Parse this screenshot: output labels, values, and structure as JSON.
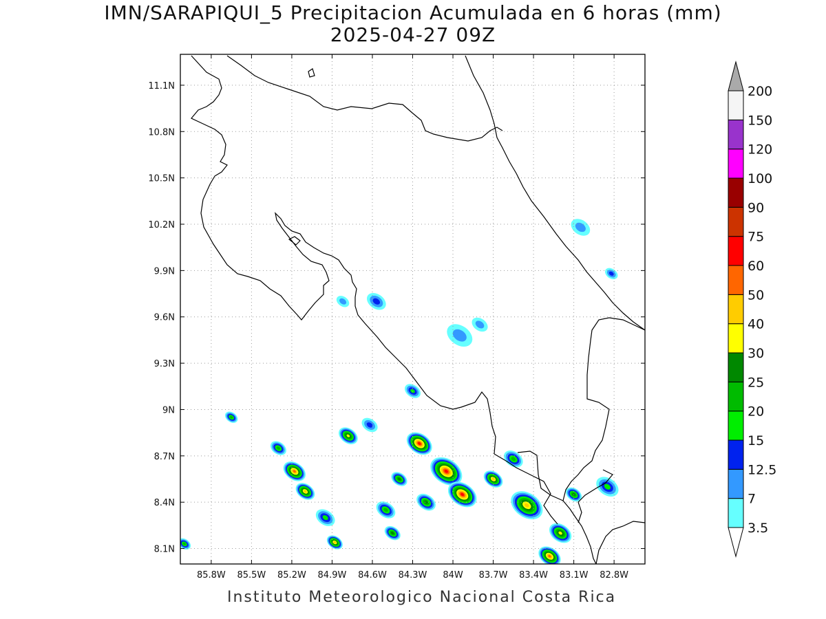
{
  "title": {
    "line1": "IMN/SARAPIQUI_5 Precipitacion Acumulada en 6 horas (mm)",
    "line2": "2025-04-27 09Z"
  },
  "credit": "Instituto Meteorologico Nacional Costa Rica",
  "map": {
    "lon_range": [
      -86.03,
      -82.57
    ],
    "lat_range": [
      8.0,
      11.3
    ],
    "lon_ticks": [
      {
        "v": -85.8,
        "label": "85.8W"
      },
      {
        "v": -85.5,
        "label": "85.5W"
      },
      {
        "v": -85.2,
        "label": "85.2W"
      },
      {
        "v": -84.9,
        "label": "84.9W"
      },
      {
        "v": -84.6,
        "label": "84.6W"
      },
      {
        "v": -84.3,
        "label": "84.3W"
      },
      {
        "v": -84.0,
        "label": "84W"
      },
      {
        "v": -83.7,
        "label": "83.7W"
      },
      {
        "v": -83.4,
        "label": "83.4W"
      },
      {
        "v": -83.1,
        "label": "83.1W"
      },
      {
        "v": -82.8,
        "label": "82.8W"
      }
    ],
    "lat_ticks": [
      {
        "v": 8.1,
        "label": "8.1N"
      },
      {
        "v": 8.4,
        "label": "8.4N"
      },
      {
        "v": 8.7,
        "label": "8.7N"
      },
      {
        "v": 9.0,
        "label": "9N"
      },
      {
        "v": 9.3,
        "label": "9.3N"
      },
      {
        "v": 9.6,
        "label": "9.6N"
      },
      {
        "v": 9.9,
        "label": "9.9N"
      },
      {
        "v": 10.2,
        "label": "10.2N"
      },
      {
        "v": 10.5,
        "label": "10.5N"
      },
      {
        "v": 10.8,
        "label": "10.8N"
      },
      {
        "v": 11.1,
        "label": "11.1N"
      }
    ],
    "grid": true
  },
  "colorbar": {
    "levels": [
      "3.5",
      "7",
      "12.5",
      "15",
      "20",
      "25",
      "30",
      "40",
      "50",
      "60",
      "75",
      "90",
      "100",
      "120",
      "150",
      "200"
    ],
    "colors": [
      "#66ffff",
      "#3399ff",
      "#0022ee",
      "#00ee00",
      "#00bb00",
      "#008800",
      "#ffff00",
      "#ffcc00",
      "#ff6600",
      "#ff0000",
      "#cc3300",
      "#990000",
      "#ff00ff",
      "#9933cc",
      "#f5f5f5"
    ],
    "over_color": "#aaaaaa",
    "under_color": "#ffffff"
  },
  "precip_cells": [
    {
      "lon": -84.05,
      "lat": 8.6,
      "r": 0.1,
      "v": 60
    },
    {
      "lon": -84.25,
      "lat": 8.78,
      "r": 0.08,
      "v": 60
    },
    {
      "lon": -83.93,
      "lat": 8.45,
      "r": 0.09,
      "v": 60
    },
    {
      "lon": -85.18,
      "lat": 8.6,
      "r": 0.07,
      "v": 50
    },
    {
      "lon": -85.1,
      "lat": 8.47,
      "r": 0.06,
      "v": 40
    },
    {
      "lon": -83.45,
      "lat": 8.38,
      "r": 0.1,
      "v": 40
    },
    {
      "lon": -83.28,
      "lat": 8.05,
      "r": 0.07,
      "v": 50
    },
    {
      "lon": -83.7,
      "lat": 8.55,
      "r": 0.06,
      "v": 40
    },
    {
      "lon": -84.88,
      "lat": 8.14,
      "r": 0.05,
      "v": 40
    },
    {
      "lon": -84.4,
      "lat": 8.55,
      "r": 0.05,
      "v": 25
    },
    {
      "lon": -84.78,
      "lat": 8.83,
      "r": 0.06,
      "v": 30
    },
    {
      "lon": -83.2,
      "lat": 8.2,
      "r": 0.07,
      "v": 30
    },
    {
      "lon": -84.2,
      "lat": 8.4,
      "r": 0.06,
      "v": 25
    },
    {
      "lon": -84.5,
      "lat": 8.35,
      "r": 0.06,
      "v": 20
    },
    {
      "lon": -85.65,
      "lat": 8.95,
      "r": 0.04,
      "v": 20
    },
    {
      "lon": -82.85,
      "lat": 8.5,
      "r": 0.07,
      "v": 15
    },
    {
      "lon": -83.55,
      "lat": 8.68,
      "r": 0.06,
      "v": 20
    },
    {
      "lon": -84.3,
      "lat": 9.12,
      "r": 0.05,
      "v": 15
    },
    {
      "lon": -84.57,
      "lat": 9.7,
      "r": 0.06,
      "v": 12.5
    },
    {
      "lon": -83.95,
      "lat": 9.48,
      "r": 0.08,
      "v": 7
    },
    {
      "lon": -83.05,
      "lat": 10.18,
      "r": 0.06,
      "v": 7
    },
    {
      "lon": -82.82,
      "lat": 9.88,
      "r": 0.04,
      "v": 12.5
    },
    {
      "lon": -84.82,
      "lat": 9.7,
      "r": 0.04,
      "v": 7
    },
    {
      "lon": -83.8,
      "lat": 9.55,
      "r": 0.05,
      "v": 7
    },
    {
      "lon": -84.62,
      "lat": 8.9,
      "r": 0.05,
      "v": 12.5
    },
    {
      "lon": -84.95,
      "lat": 8.3,
      "r": 0.06,
      "v": 15
    },
    {
      "lon": -86.0,
      "lat": 8.13,
      "r": 0.04,
      "v": 20
    },
    {
      "lon": -85.3,
      "lat": 8.75,
      "r": 0.05,
      "v": 20
    },
    {
      "lon": -84.45,
      "lat": 8.2,
      "r": 0.05,
      "v": 25
    },
    {
      "lon": -83.1,
      "lat": 8.45,
      "r": 0.05,
      "v": 25
    }
  ]
}
